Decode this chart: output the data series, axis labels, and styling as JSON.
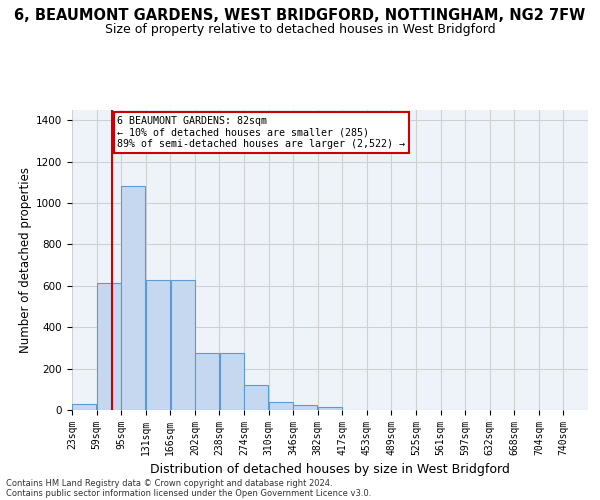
{
  "title": "6, BEAUMONT GARDENS, WEST BRIDGFORD, NOTTINGHAM, NG2 7FW",
  "subtitle": "Size of property relative to detached houses in West Bridgford",
  "xlabel": "Distribution of detached houses by size in West Bridgford",
  "ylabel": "Number of detached properties",
  "footer_line1": "Contains HM Land Registry data © Crown copyright and database right 2024.",
  "footer_line2": "Contains public sector information licensed under the Open Government Licence v3.0.",
  "bar_labels": [
    "23sqm",
    "59sqm",
    "95sqm",
    "131sqm",
    "166sqm",
    "202sqm",
    "238sqm",
    "274sqm",
    "310sqm",
    "346sqm",
    "382sqm",
    "417sqm",
    "453sqm",
    "489sqm",
    "525sqm",
    "561sqm",
    "597sqm",
    "632sqm",
    "668sqm",
    "704sqm",
    "740sqm"
  ],
  "bar_values": [
    30,
    615,
    1085,
    630,
    630,
    275,
    275,
    120,
    40,
    25,
    15,
    0,
    0,
    0,
    0,
    0,
    0,
    0,
    0,
    0,
    0
  ],
  "bar_color": "#c5d8f0",
  "bar_edge_color": "#5b9bd5",
  "grid_color": "#d0d0d0",
  "bg_color": "#eef3fa",
  "ylim": [
    0,
    1450
  ],
  "yticks": [
    0,
    200,
    400,
    600,
    800,
    1000,
    1200,
    1400
  ],
  "annotation_line1": "6 BEAUMONT GARDENS: 82sqm",
  "annotation_line2": "← 10% of detached houses are smaller (285)",
  "annotation_line3": "89% of semi-detached houses are larger (2,522) →",
  "vline_x": 82,
  "vline_color": "#cc0000",
  "annotation_box_color": "#cc0000",
  "title_fontsize": 10.5,
  "subtitle_fontsize": 9,
  "axis_label_fontsize": 8.5,
  "tick_fontsize": 7,
  "footer_fontsize": 6
}
